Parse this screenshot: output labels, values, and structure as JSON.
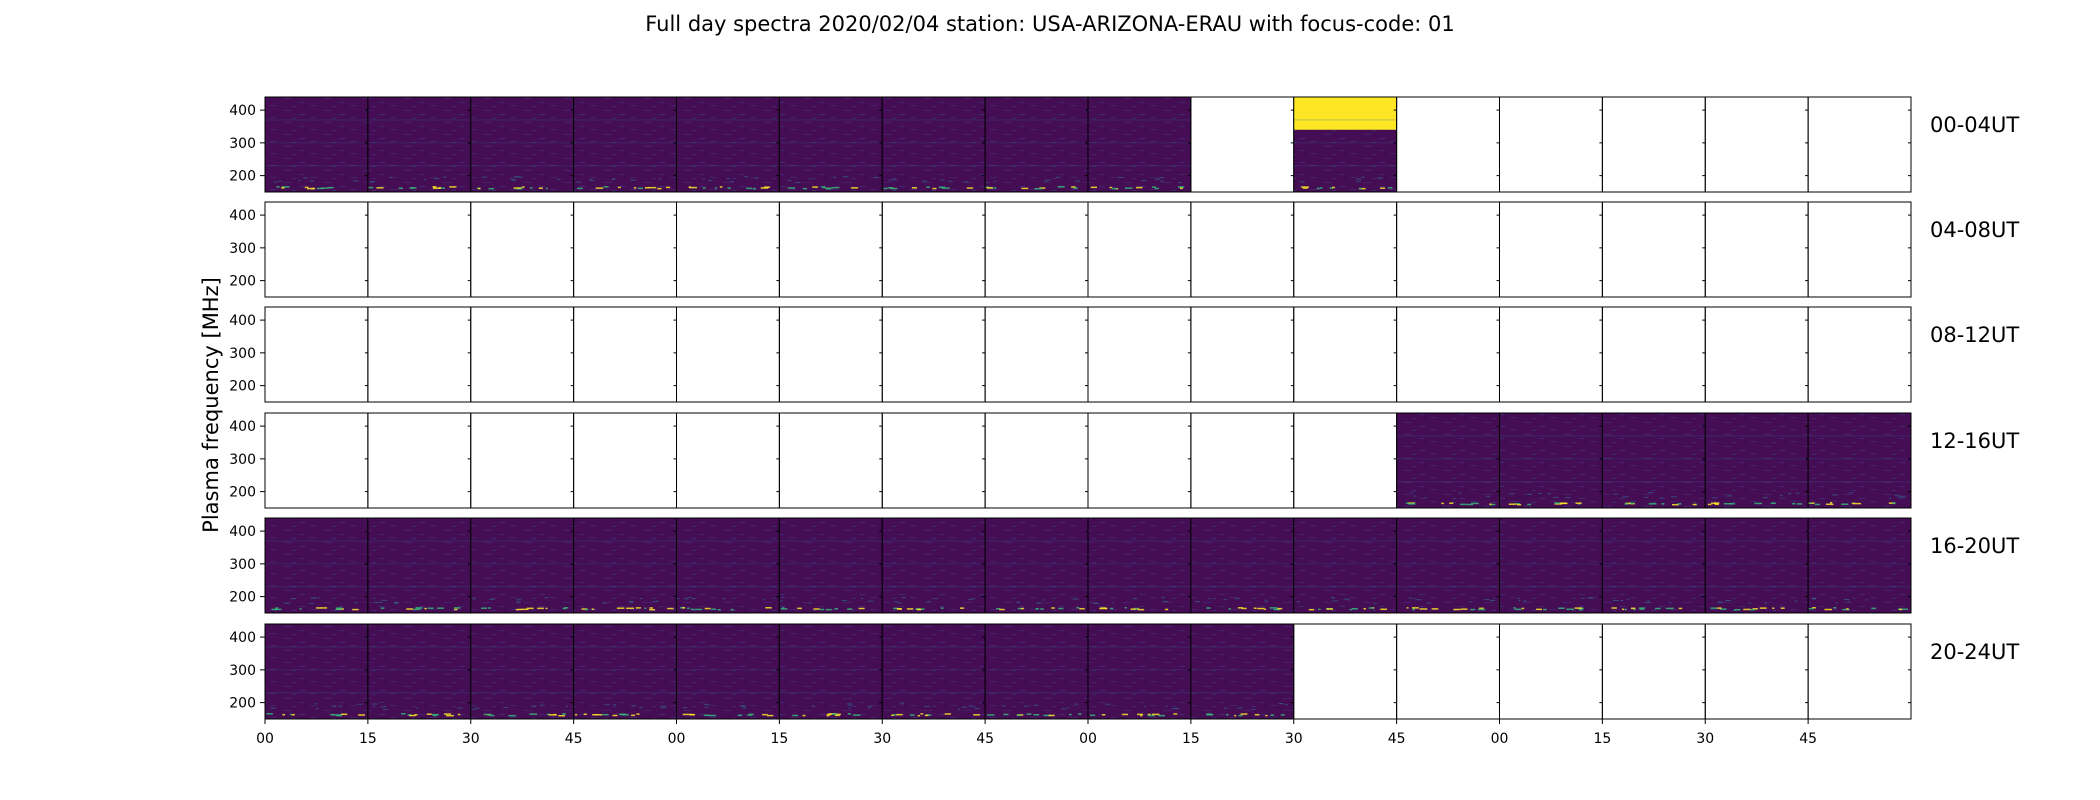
{
  "chart_data": {
    "type": "heatmap",
    "title": "Full day spectra 2020/02/04 station: USA-ARIZONA-ERAU with focus-code: 01",
    "ylabel": "Plasma frequency [MHz]",
    "ylim": [
      150,
      440
    ],
    "yticks": [
      200,
      300,
      400
    ],
    "xticks": [
      "00",
      "15",
      "30",
      "45",
      "00",
      "15",
      "30",
      "45",
      "00",
      "15",
      "30",
      "45",
      "00",
      "15",
      "30",
      "45"
    ],
    "colormap": "viridis",
    "colors": {
      "background": "#440d54",
      "band": "#3b2f80",
      "line": "#31688e",
      "hot": "#fde725",
      "warm": "#35b779",
      "frame": "#000000"
    },
    "rows": [
      {
        "label": "00-04UT",
        "panels": [
          "data",
          "data",
          "data",
          "data",
          "data",
          "data",
          "data",
          "data",
          "data",
          "empty",
          "partial",
          "empty",
          "empty",
          "empty",
          "empty",
          "empty"
        ]
      },
      {
        "label": "04-08UT",
        "panels": [
          "empty",
          "empty",
          "empty",
          "empty",
          "empty",
          "empty",
          "empty",
          "empty",
          "empty",
          "empty",
          "empty",
          "empty",
          "empty",
          "empty",
          "empty",
          "empty"
        ]
      },
      {
        "label": "08-12UT",
        "panels": [
          "empty",
          "empty",
          "empty",
          "empty",
          "empty",
          "empty",
          "empty",
          "empty",
          "empty",
          "empty",
          "empty",
          "empty",
          "empty",
          "empty",
          "empty",
          "empty"
        ]
      },
      {
        "label": "12-16UT",
        "panels": [
          "empty",
          "empty",
          "empty",
          "empty",
          "empty",
          "empty",
          "empty",
          "empty",
          "empty",
          "empty",
          "empty",
          "data",
          "data",
          "data",
          "data",
          "data"
        ]
      },
      {
        "label": "16-20UT",
        "panels": [
          "data",
          "data",
          "data",
          "data",
          "data",
          "data",
          "data",
          "data",
          "data",
          "data",
          "data",
          "data",
          "data",
          "data",
          "data",
          "data"
        ]
      },
      {
        "label": "20-24UT",
        "panels": [
          "data",
          "data",
          "data",
          "data",
          "data",
          "data",
          "data",
          "data",
          "data",
          "data",
          "empty",
          "empty",
          "empty",
          "empty",
          "empty",
          "empty"
        ]
      }
    ]
  }
}
